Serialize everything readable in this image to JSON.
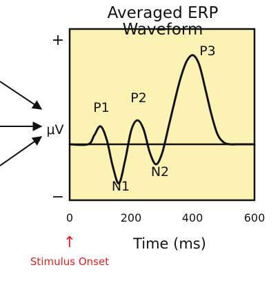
{
  "title": {
    "line1": "Averaged ERP",
    "line2": "Waveform"
  },
  "y_axis": {
    "plus_label": "+",
    "minus_label": "−",
    "unit_label": "μV"
  },
  "x_axis": {
    "label": "Time (ms)",
    "ticks": [
      "0",
      "200",
      "400",
      "600"
    ]
  },
  "components": {
    "p1": "P1",
    "p2": "P2",
    "p3": "P3",
    "n1": "N1",
    "n2": "N2"
  },
  "stimulus": {
    "label": "Stimulus Onset",
    "arrow_glyph": "↑",
    "color": "#e02020"
  },
  "colors": {
    "plot_background": "#fcf2b4",
    "curve": "#111111"
  },
  "chart_data": {
    "type": "line",
    "title": "Averaged ERP Waveform",
    "xlabel": "Time (ms)",
    "ylabel": "μV",
    "xlim": [
      0,
      600
    ],
    "x_ticks": [
      0,
      200,
      400,
      600
    ],
    "series": [
      {
        "x": [
          0,
          60,
          80,
          100,
          120,
          140,
          160,
          180,
          200,
          220,
          240,
          260,
          280,
          300,
          320,
          340,
          360,
          380,
          400,
          420,
          440,
          460,
          480,
          500,
          520,
          540,
          560,
          600
        ],
        "y": [
          0,
          0,
          0.9,
          1.8,
          0.5,
          -2.2,
          -3.9,
          -1.6,
          1.4,
          2.4,
          1.5,
          -0.8,
          -2.0,
          -0.9,
          1.6,
          4.2,
          6.6,
          8.3,
          8.9,
          8.0,
          5.6,
          3.0,
          1.0,
          0.2,
          0.0,
          0.0,
          0.0,
          0
        ]
      }
    ],
    "peaks": [
      {
        "label": "P1",
        "x": 100,
        "y": 1.8
      },
      {
        "label": "N1",
        "x": 160,
        "y": -3.9
      },
      {
        "label": "P2",
        "x": 220,
        "y": 2.4
      },
      {
        "label": "N2",
        "x": 280,
        "y": -2.0
      },
      {
        "label": "P3",
        "x": 400,
        "y": 8.9
      }
    ]
  }
}
